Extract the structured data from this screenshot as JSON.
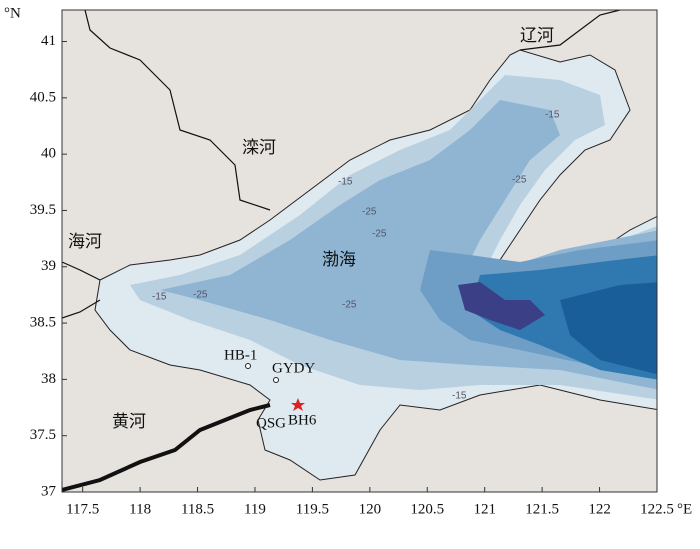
{
  "map": {
    "xlim": [
      117.32,
      122.5
    ],
    "ylim": [
      37,
      41.28
    ],
    "xticks": [
      117.5,
      118,
      118.5,
      119,
      119.5,
      120,
      120.5,
      121,
      121.5,
      122,
      122.5
    ],
    "yticks": [
      37,
      37.5,
      38,
      38.5,
      39,
      39.5,
      40,
      40.5,
      41
    ],
    "x_unit": "°E",
    "y_unit": "°N",
    "rivers": [
      "辽河",
      "滦河",
      "海河",
      "黄河"
    ],
    "sea": "渤海",
    "stations": [
      "HB-1",
      "GYDY",
      "BH6",
      "QSG"
    ],
    "contour_labels": [
      "-15",
      "-15",
      "-15",
      "-15",
      "-25",
      "-25",
      "-25",
      "-25",
      "-25"
    ]
  }
}
